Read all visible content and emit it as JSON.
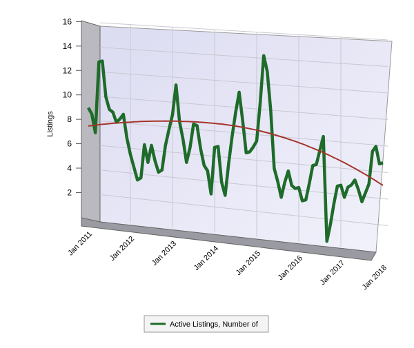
{
  "chart_data": {
    "type": "line",
    "y_label": "Listings",
    "categories": [
      "Jan 2011",
      null,
      null,
      null,
      null,
      null,
      null,
      null,
      null,
      null,
      null,
      null,
      "Jan 2012",
      null,
      null,
      null,
      null,
      null,
      null,
      null,
      null,
      null,
      null,
      null,
      "Jan 2013",
      null,
      null,
      null,
      null,
      null,
      null,
      null,
      null,
      null,
      null,
      null,
      "Jan 2014",
      null,
      null,
      null,
      null,
      null,
      null,
      null,
      null,
      null,
      null,
      null,
      "Jan 2015",
      null,
      null,
      null,
      null,
      null,
      null,
      null,
      null,
      null,
      null,
      null,
      "Jan 2016",
      null,
      null,
      null,
      null,
      null,
      null,
      null,
      null,
      null,
      null,
      null,
      "Jan 2017",
      null,
      null,
      null,
      null,
      null,
      null,
      null,
      null,
      null,
      null,
      null,
      "Jan 2018"
    ],
    "series": [
      {
        "name": "Active Listings, Number of",
        "color": "#1e6b2a",
        "values": [
          9,
          8.5,
          7,
          12.8,
          12.9,
          10,
          9,
          8.8,
          8,
          8.3,
          8.7,
          6.8,
          5.5,
          4.5,
          3.5,
          3.7,
          6.4,
          5,
          6.4,
          5.2,
          4.3,
          4.5,
          6.5,
          7.8,
          9,
          11.4,
          8.5,
          7.1,
          5.3,
          6.5,
          8.4,
          8.3,
          6.5,
          5.2,
          4.8,
          3,
          6.7,
          6.8,
          4,
          3,
          5.5,
          7.7,
          9.6,
          11.2,
          9,
          6.5,
          6.6,
          7,
          7.5,
          10.5,
          14.2,
          13,
          10,
          5.5,
          4.5,
          3.3,
          4.5,
          5.4,
          4.3,
          4.1,
          4.2,
          3.2,
          3.3,
          4.6,
          6,
          6.1,
          7.2,
          8.3,
          0.3,
          1.6,
          3.2,
          4.6,
          4.7,
          3.8,
          4.6,
          4.8,
          5.2,
          4.5,
          3.6,
          4.3,
          5,
          7.5,
          7.9,
          6.6,
          6.7
        ]
      },
      {
        "color": "#a5342a",
        "values": [
          7.5,
          7.56,
          7.62,
          7.68,
          7.74,
          7.79,
          7.84,
          7.9,
          7.95,
          7.99,
          8.04,
          8.08,
          8.12,
          8.17,
          8.2,
          8.24,
          8.28,
          8.31,
          8.34,
          8.37,
          8.4,
          8.42,
          8.45,
          8.47,
          8.49,
          8.51,
          8.53,
          8.54,
          8.56,
          8.57,
          8.58,
          8.59,
          8.59,
          8.6,
          8.6,
          8.6,
          8.6,
          8.59,
          8.59,
          8.58,
          8.56,
          8.55,
          8.53,
          8.5,
          8.48,
          8.45,
          8.42,
          8.38,
          8.35,
          8.31,
          8.26,
          8.22,
          8.17,
          8.11,
          8.06,
          8,
          7.94,
          7.87,
          7.81,
          7.74,
          7.66,
          7.59,
          7.51,
          7.42,
          7.34,
          7.25,
          7.16,
          7.07,
          6.97,
          6.87,
          6.76,
          6.66,
          6.55,
          6.44,
          6.32,
          6.2,
          6.08,
          5.95,
          5.83,
          5.7,
          5.56,
          5.43,
          5.29,
          5.14,
          5
        ]
      }
    ],
    "ylim": [
      0,
      16
    ],
    "yticks": [
      2,
      4,
      6,
      8,
      10,
      12,
      14,
      16
    ],
    "grid": true
  }
}
